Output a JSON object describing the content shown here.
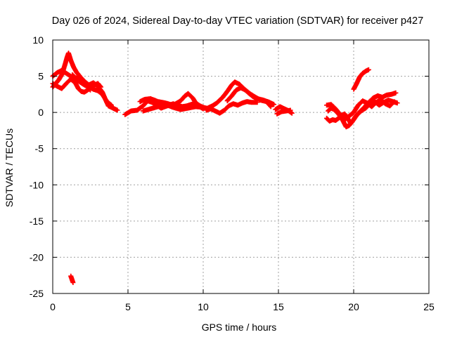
{
  "chart_data": {
    "type": "scatter",
    "title": "Day 026 of 2024, Sidereal Day-to-day VTEC variation (SDTVAR) for receiver p427",
    "xlabel": "GPS time / hours",
    "ylabel": "SDTVAR / TECUs",
    "xlim": [
      0,
      25
    ],
    "ylim": [
      -25,
      10
    ],
    "x_ticks": [
      0,
      5,
      10,
      15,
      20,
      25
    ],
    "y_ticks": [
      -25,
      -20,
      -15,
      -10,
      -5,
      0,
      5,
      10
    ],
    "grid": true,
    "marker": "plus",
    "series": [
      {
        "name": "SDTVAR",
        "color": "#ff0000",
        "tracks": [
          [
            [
              0.0,
              3.5
            ],
            [
              0.2,
              4.0
            ],
            [
              0.4,
              4.5
            ],
            [
              0.6,
              5.2
            ],
            [
              0.8,
              6.5
            ],
            [
              0.95,
              7.6
            ],
            [
              1.05,
              8.2
            ],
            [
              1.2,
              7.2
            ],
            [
              1.4,
              6.2
            ],
            [
              1.6,
              5.5
            ],
            [
              1.8,
              5.0
            ],
            [
              2.1,
              4.3
            ],
            [
              2.4,
              3.8
            ],
            [
              2.7,
              4.1
            ],
            [
              3.0,
              3.6
            ],
            [
              3.3,
              2.8
            ],
            [
              3.5,
              1.8
            ],
            [
              3.7,
              0.9
            ],
            [
              4.0,
              0.6
            ],
            [
              4.3,
              0.3
            ]
          ],
          [
            [
              0.0,
              5.0
            ],
            [
              0.3,
              5.5
            ],
            [
              0.6,
              5.8
            ],
            [
              0.9,
              5.4
            ],
            [
              1.2,
              5.0
            ],
            [
              1.5,
              4.6
            ],
            [
              1.8,
              4.2
            ],
            [
              2.1,
              3.8
            ],
            [
              2.4,
              3.5
            ],
            [
              2.7,
              3.2
            ],
            [
              3.0,
              3.0
            ],
            [
              3.3,
              2.5
            ],
            [
              3.6,
              1.5
            ],
            [
              3.9,
              1.0
            ]
          ],
          [
            [
              0.0,
              4.0
            ],
            [
              0.3,
              3.6
            ],
            [
              0.6,
              3.3
            ],
            [
              0.9,
              4.0
            ],
            [
              1.2,
              4.6
            ],
            [
              1.5,
              4.1
            ],
            [
              1.7,
              3.3
            ],
            [
              1.9,
              2.9
            ],
            [
              2.1,
              2.8
            ],
            [
              2.4,
              3.2
            ],
            [
              2.7,
              3.7
            ],
            [
              3.0,
              4.0
            ],
            [
              3.2,
              3.5
            ]
          ],
          [
            [
              1.3,
              5.2
            ],
            [
              1.5,
              4.8
            ],
            [
              1.7,
              4.7
            ],
            [
              1.9,
              4.4
            ],
            [
              2.1,
              4.1
            ],
            [
              2.3,
              3.6
            ],
            [
              2.5,
              3.1
            ]
          ],
          [
            [
              1.2,
              -22.6
            ],
            [
              1.25,
              -22.9
            ],
            [
              1.3,
              -23.2
            ],
            [
              1.35,
              -23.5
            ]
          ],
          [
            [
              4.8,
              -0.3
            ],
            [
              5.2,
              0.2
            ],
            [
              5.6,
              0.3
            ],
            [
              6.0,
              0.9
            ],
            [
              6.3,
              1.6
            ],
            [
              6.6,
              1.4
            ],
            [
              6.9,
              1.0
            ],
            [
              7.2,
              0.6
            ],
            [
              7.6,
              0.9
            ],
            [
              8.0,
              1.2
            ],
            [
              8.3,
              1.0
            ],
            [
              8.6,
              0.8
            ],
            [
              8.9,
              0.9
            ],
            [
              9.2,
              1.1
            ],
            [
              9.5,
              1.3
            ],
            [
              9.8,
              0.9
            ],
            [
              10.1,
              0.6
            ]
          ],
          [
            [
              5.8,
              1.5
            ],
            [
              6.1,
              1.8
            ],
            [
              6.5,
              1.9
            ],
            [
              7.0,
              1.5
            ],
            [
              7.5,
              1.3
            ],
            [
              8.0,
              1.0
            ],
            [
              8.5,
              1.6
            ],
            [
              8.8,
              2.3
            ],
            [
              9.0,
              2.6
            ],
            [
              9.3,
              2.0
            ],
            [
              9.6,
              1.0
            ],
            [
              10.0,
              0.5
            ]
          ],
          [
            [
              6.0,
              0.2
            ],
            [
              6.5,
              0.5
            ],
            [
              7.0,
              0.8
            ],
            [
              7.5,
              1.1
            ],
            [
              8.0,
              0.7
            ],
            [
              8.5,
              0.4
            ],
            [
              9.0,
              0.6
            ],
            [
              9.5,
              0.8
            ],
            [
              10.0,
              0.7
            ],
            [
              10.4,
              0.5
            ]
          ],
          [
            [
              10.3,
              0.6
            ],
            [
              10.6,
              0.9
            ],
            [
              10.9,
              1.3
            ],
            [
              11.1,
              1.7
            ],
            [
              11.3,
              2.1
            ],
            [
              11.6,
              2.9
            ],
            [
              11.9,
              3.8
            ],
            [
              12.1,
              4.2
            ],
            [
              12.4,
              3.9
            ],
            [
              12.7,
              3.3
            ],
            [
              13.0,
              2.7
            ],
            [
              13.3,
              2.2
            ],
            [
              13.6,
              1.9
            ],
            [
              14.0,
              1.7
            ],
            [
              14.4,
              1.4
            ],
            [
              14.7,
              1.1
            ]
          ],
          [
            [
              10.2,
              0.3
            ],
            [
              10.5,
              0.5
            ],
            [
              10.8,
              0.2
            ],
            [
              11.1,
              -0.1
            ],
            [
              11.4,
              0.3
            ],
            [
              11.7,
              0.9
            ],
            [
              12.0,
              1.2
            ],
            [
              12.3,
              1.0
            ],
            [
              12.6,
              1.3
            ],
            [
              12.9,
              1.5
            ],
            [
              13.2,
              1.4
            ],
            [
              13.6,
              1.4
            ]
          ],
          [
            [
              11.6,
              1.6
            ],
            [
              11.9,
              2.3
            ],
            [
              12.2,
              3.1
            ],
            [
              12.5,
              3.4
            ],
            [
              12.8,
              3.1
            ],
            [
              13.1,
              2.6
            ],
            [
              13.4,
              2.2
            ],
            [
              13.8,
              1.7
            ],
            [
              14.2,
              1.5
            ],
            [
              14.5,
              0.8
            ]
          ],
          [
            [
              14.8,
              0.4
            ],
            [
              15.1,
              0.8
            ],
            [
              15.4,
              0.5
            ],
            [
              15.7,
              0.2
            ],
            [
              15.9,
              -0.1
            ]
          ],
          [
            [
              14.9,
              -0.2
            ],
            [
              15.2,
              0.1
            ],
            [
              15.5,
              0.2
            ],
            [
              15.8,
              0.3
            ]
          ],
          [
            [
              18.2,
              -0.8
            ],
            [
              18.4,
              -1.2
            ],
            [
              18.6,
              -1.0
            ],
            [
              18.8,
              -1.1
            ],
            [
              19.0,
              -0.8
            ],
            [
              19.2,
              -0.4
            ],
            [
              19.4,
              -0.2
            ],
            [
              19.6,
              -0.8
            ],
            [
              19.8,
              -1.5
            ],
            [
              20.0,
              -1.0
            ],
            [
              20.2,
              -0.4
            ],
            [
              20.5,
              0.2
            ],
            [
              20.8,
              0.6
            ],
            [
              21.1,
              1.2
            ],
            [
              21.4,
              1.5
            ],
            [
              21.7,
              1.0
            ],
            [
              22.0,
              1.4
            ],
            [
              22.3,
              1.7
            ],
            [
              22.6,
              1.5
            ],
            [
              22.9,
              1.3
            ]
          ],
          [
            [
              18.3,
              0.2
            ],
            [
              18.5,
              0.6
            ],
            [
              18.7,
              0.4
            ],
            [
              18.9,
              0.0
            ],
            [
              19.1,
              -0.5
            ],
            [
              19.3,
              -1.2
            ],
            [
              19.5,
              -2.0
            ],
            [
              19.7,
              -1.8
            ],
            [
              19.9,
              -1.3
            ],
            [
              20.1,
              -0.6
            ],
            [
              20.4,
              0.1
            ],
            [
              20.7,
              0.7
            ],
            [
              21.0,
              1.4
            ],
            [
              21.3,
              2.0
            ],
            [
              21.6,
              2.3
            ],
            [
              21.9,
              2.1
            ],
            [
              22.2,
              2.4
            ],
            [
              22.5,
              2.5
            ],
            [
              22.8,
              2.7
            ]
          ],
          [
            [
              18.2,
              1.0
            ],
            [
              18.5,
              1.1
            ],
            [
              18.8,
              0.5
            ],
            [
              19.1,
              -0.3
            ],
            [
              19.4,
              -1.0
            ],
            [
              19.7,
              -0.5
            ],
            [
              20.0,
              0.0
            ],
            [
              20.3,
              1.0
            ],
            [
              20.6,
              1.6
            ],
            [
              20.9,
              1.3
            ],
            [
              21.2,
              0.8
            ],
            [
              21.5,
              1.4
            ],
            [
              21.8,
              1.8
            ],
            [
              22.1,
              1.2
            ],
            [
              22.4,
              0.9
            ],
            [
              22.7,
              1.5
            ]
          ],
          [
            [
              20.0,
              3.2
            ],
            [
              20.2,
              4.0
            ],
            [
              20.4,
              4.9
            ],
            [
              20.6,
              5.4
            ],
            [
              20.8,
              5.7
            ],
            [
              21.0,
              5.9
            ]
          ]
        ]
      }
    ]
  }
}
